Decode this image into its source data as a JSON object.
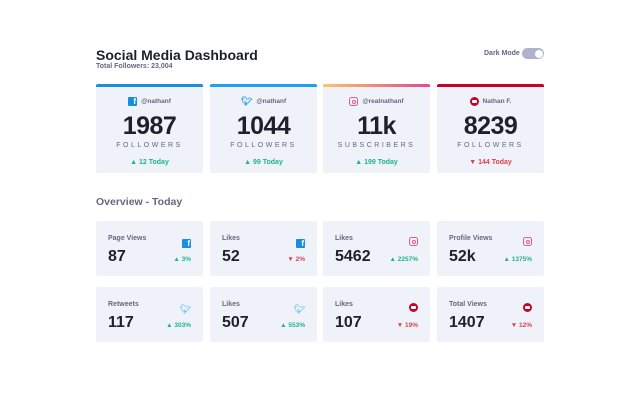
{
  "header": {
    "title": "Social Media Dashboard",
    "total": "Total Followers: 23,004",
    "dark_mode_label": "Dark Mode",
    "dark_mode_on": false
  },
  "colors": {
    "facebook": "#178fdb",
    "twitter": "#1da0f2",
    "instagram": "#df5e8c",
    "youtube": "#c4032a",
    "up": "#1db489",
    "down": "#dc414c"
  },
  "followers": [
    {
      "platform": "facebook",
      "icon": "facebook-icon",
      "handle": "@nathanf",
      "count": "1987",
      "label": "FOLLOWERS",
      "today": "▲ 12 Today",
      "trend": "up"
    },
    {
      "platform": "twitter",
      "icon": "twitter-icon",
      "handle": "@nathanf",
      "count": "1044",
      "label": "FOLLOWERS",
      "today": "▲ 99 Today",
      "trend": "up"
    },
    {
      "platform": "instagram",
      "icon": "instagram-icon",
      "handle": "@realnathanf",
      "count": "11k",
      "label": "SUBSCRIBERS",
      "today": "▲ 199 Today",
      "trend": "up"
    },
    {
      "platform": "youtube",
      "icon": "youtube-icon",
      "handle": "Nathan F.",
      "count": "8239",
      "label": "FOLLOWERS",
      "today": "▼ 144 Today",
      "trend": "down"
    }
  ],
  "overview": {
    "title": "Overview - Today",
    "items": [
      {
        "title": "Page Views",
        "platform": "facebook",
        "value": "87",
        "change": "▲ 3%",
        "trend": "up"
      },
      {
        "title": "Likes",
        "platform": "facebook",
        "value": "52",
        "change": "▼ 2%",
        "trend": "down"
      },
      {
        "title": "Likes",
        "platform": "instagram",
        "value": "5462",
        "change": "▲ 2257%",
        "trend": "up"
      },
      {
        "title": "Profile Views",
        "platform": "instagram",
        "value": "52k",
        "change": "▲ 1375%",
        "trend": "up"
      },
      {
        "title": "Retweets",
        "platform": "twitter",
        "value": "117",
        "change": "▲ 303%",
        "trend": "up"
      },
      {
        "title": "Likes",
        "platform": "twitter",
        "value": "507",
        "change": "▲ 553%",
        "trend": "up"
      },
      {
        "title": "Likes",
        "platform": "youtube",
        "value": "107",
        "change": "▼ 19%",
        "trend": "down"
      },
      {
        "title": "Total Views",
        "platform": "youtube",
        "value": "1407",
        "change": "▼ 12%",
        "trend": "down"
      }
    ]
  }
}
